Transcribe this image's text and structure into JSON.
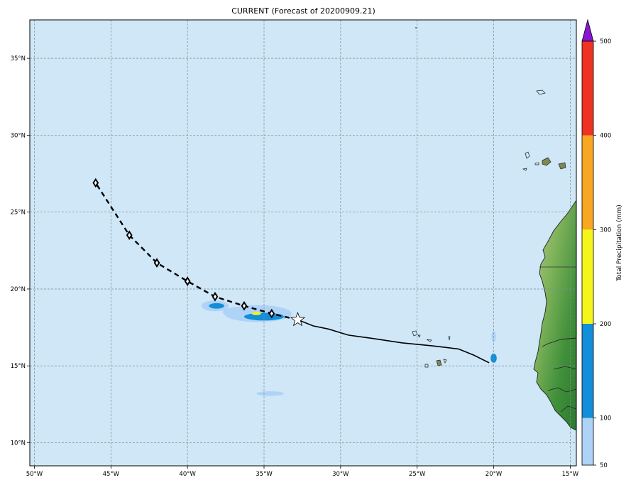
{
  "title": "CURRENT (Forecast of 20200909.21)",
  "map": {
    "lon_range": [
      -50.3,
      -14.6
    ],
    "lat_range": [
      8.5,
      37.5
    ],
    "ocean_color": "#cfe7f6",
    "grid_color": "#7f8c95",
    "lon_ticks": [
      {
        "value": -50,
        "label": "50°W"
      },
      {
        "value": -45,
        "label": "45°W"
      },
      {
        "value": -40,
        "label": "40°W"
      },
      {
        "value": -35,
        "label": "35°W"
      },
      {
        "value": -30,
        "label": "30°W"
      },
      {
        "value": -25,
        "label": "25°W"
      },
      {
        "value": -20,
        "label": "20°W"
      },
      {
        "value": -15,
        "label": "15°W"
      }
    ],
    "lat_ticks": [
      {
        "value": 10,
        "label": "10°N"
      },
      {
        "value": 15,
        "label": "15°N"
      },
      {
        "value": 20,
        "label": "20°N"
      },
      {
        "value": 25,
        "label": "25°N"
      },
      {
        "value": 30,
        "label": "30°N"
      },
      {
        "value": 35,
        "label": "35°N"
      }
    ]
  },
  "track": {
    "past_track": [
      [
        -20.3,
        15.2
      ],
      [
        -21.3,
        15.7
      ],
      [
        -22.3,
        16.1
      ],
      [
        -24.0,
        16.3
      ],
      [
        -26.0,
        16.5
      ],
      [
        -28.0,
        16.8
      ],
      [
        -29.5,
        17.0
      ],
      [
        -30.8,
        17.4
      ],
      [
        -31.8,
        17.6
      ],
      [
        -32.8,
        18.0
      ]
    ],
    "current_position": [
      -32.8,
      18.0
    ],
    "forecast_track": [
      [
        -32.8,
        18.0
      ],
      [
        -34.5,
        18.4
      ],
      [
        -36.3,
        18.9
      ],
      [
        -38.2,
        19.5
      ],
      [
        -40.0,
        20.5
      ],
      [
        -42.0,
        21.7
      ],
      [
        -43.8,
        23.5
      ],
      [
        -46.0,
        26.9
      ]
    ],
    "forecast_markers": [
      [
        -34.5,
        18.4
      ],
      [
        -36.3,
        18.9
      ],
      [
        -38.2,
        19.5
      ],
      [
        -40.0,
        20.5
      ],
      [
        -42.0,
        21.7
      ],
      [
        -43.8,
        23.5
      ],
      [
        -46.0,
        26.9
      ]
    ]
  },
  "precipitation_areas": [
    {
      "center": [
        -35.4,
        18.4
      ],
      "radius": [
        2.2,
        0.55
      ],
      "color": "#afd3f7"
    },
    {
      "center": [
        -36.5,
        18.5
      ],
      "radius": [
        1.2,
        0.35
      ],
      "color": "#afd3f7"
    },
    {
      "center": [
        -38.2,
        18.9
      ],
      "radius": [
        0.9,
        0.35
      ],
      "color": "#afd3f7"
    },
    {
      "center": [
        -35.0,
        18.2
      ],
      "radius": [
        1.3,
        0.25
      ],
      "color": "#138ed9"
    },
    {
      "center": [
        -38.1,
        18.9
      ],
      "radius": [
        0.5,
        0.18
      ],
      "color": "#138ed9"
    },
    {
      "center": [
        -35.5,
        18.4
      ],
      "radius": [
        0.3,
        0.1
      ],
      "color": "#f5f51a"
    },
    {
      "center": [
        -34.6,
        13.2
      ],
      "radius": [
        0.9,
        0.15
      ],
      "color": "#afd3f7"
    },
    {
      "center": [
        -20.0,
        16.9
      ],
      "radius": [
        0.15,
        0.35
      ],
      "color": "#afd3f7"
    },
    {
      "center": [
        -20.0,
        15.5
      ],
      "radius": [
        0.2,
        0.3
      ],
      "color": "#138ed9"
    }
  ],
  "colorbar": {
    "label": "Total Precipitation (mm)",
    "extend_color": "#8a14d4",
    "bins": [
      {
        "from": 50,
        "to": 100,
        "color": "#afd3f7"
      },
      {
        "from": 100,
        "to": 200,
        "color": "#138ed9"
      },
      {
        "from": 200,
        "to": 300,
        "color": "#f5f51a"
      },
      {
        "from": 300,
        "to": 400,
        "color": "#f7a722"
      },
      {
        "from": 400,
        "to": 500,
        "color": "#ee3323"
      }
    ],
    "tick_labels": [
      "50",
      "100",
      "200",
      "300",
      "400",
      "500"
    ]
  }
}
